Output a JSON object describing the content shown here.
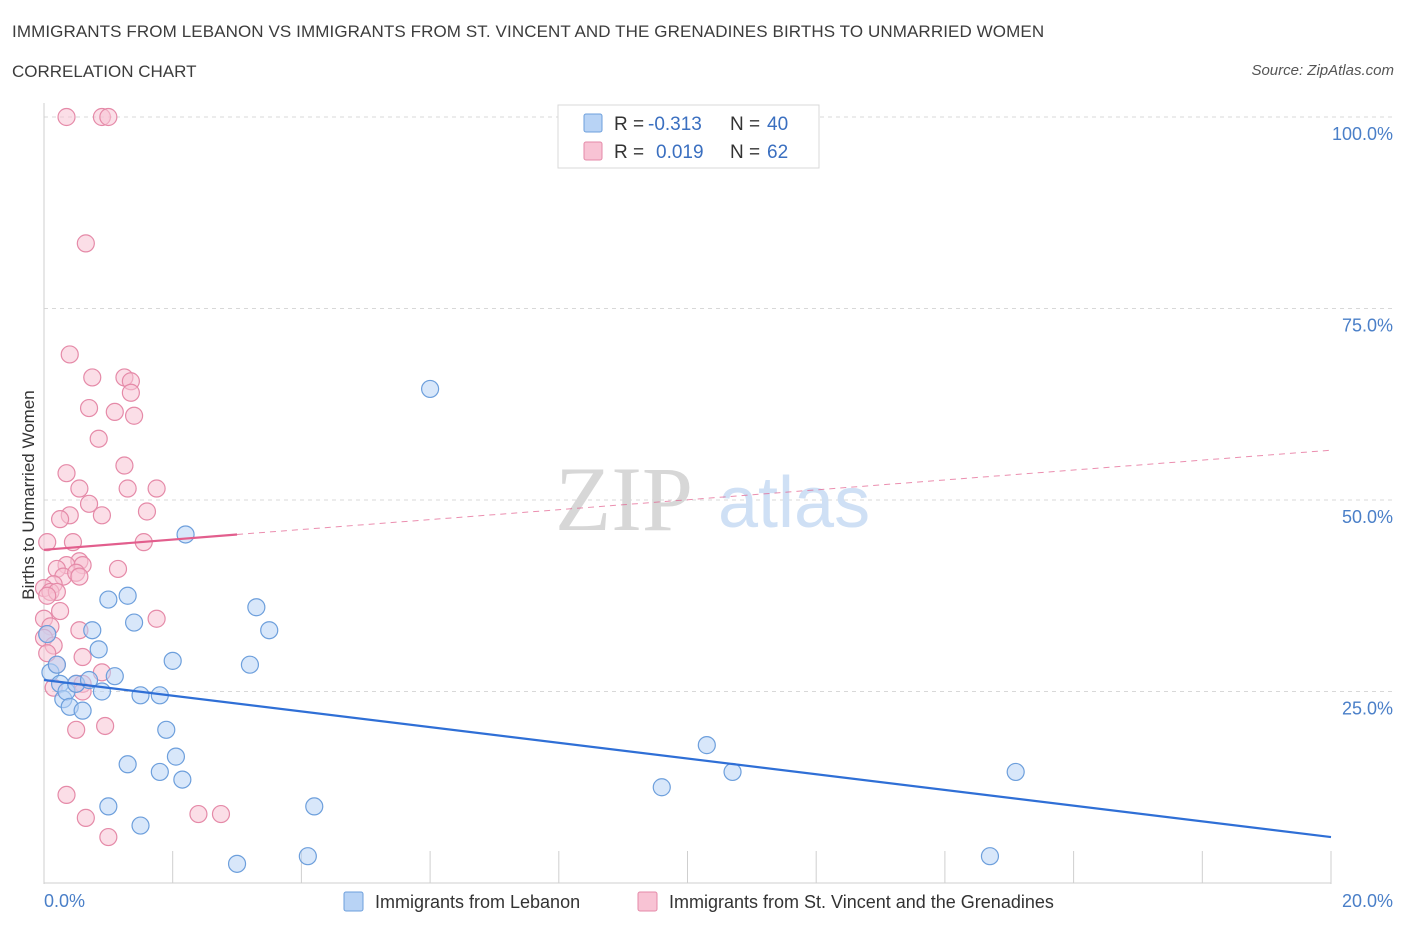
{
  "header": {
    "title": "IMMIGRANTS FROM LEBANON VS IMMIGRANTS FROM ST. VINCENT AND THE GRENADINES BIRTHS TO UNMARRIED WOMEN",
    "subtitle": "CORRELATION CHART",
    "source": "Source: ZipAtlas.com"
  },
  "watermark": {
    "zip": "ZIP",
    "atlas": "atlas"
  },
  "colors": {
    "blue_fill": "#b8d3f5",
    "blue_stroke": "#6d9fdc",
    "blue_line": "#2f6fd6",
    "pink_fill": "#f8c3d4",
    "pink_stroke": "#e58aa8",
    "pink_line": "#e25e8d",
    "grid": "#d8d8d8",
    "tick_text": "#4a7fc8"
  },
  "legend": {
    "r_label": "R =",
    "n_label": "N =",
    "entries": [
      {
        "r": "-0.313",
        "n": "40"
      },
      {
        "r": "0.019",
        "n": "62"
      }
    ]
  },
  "chart_data": {
    "type": "scatter",
    "xlabel": "",
    "ylabel": "Births to Unmarried Women",
    "xlim": [
      0,
      20
    ],
    "ylim": [
      0,
      100
    ],
    "x_tick_labels": [
      "0.0%",
      "20.0%"
    ],
    "y_tick_labels": [
      "100.0%",
      "75.0%",
      "50.0%",
      "25.0%"
    ],
    "y_ticks": [
      100,
      75,
      50,
      25
    ],
    "series": [
      {
        "name": "Immigrants from Lebanon",
        "points": [
          [
            0.1,
            27.5
          ],
          [
            0.2,
            28.5
          ],
          [
            0.25,
            26.0
          ],
          [
            0.3,
            24.0
          ],
          [
            0.35,
            25.0
          ],
          [
            0.4,
            23.0
          ],
          [
            0.5,
            26.0
          ],
          [
            0.6,
            22.5
          ],
          [
            0.7,
            26.5
          ],
          [
            0.75,
            33.0
          ],
          [
            0.85,
            30.5
          ],
          [
            0.9,
            25.0
          ],
          [
            1.0,
            37.0
          ],
          [
            1.1,
            27.0
          ],
          [
            1.3,
            37.5
          ],
          [
            1.4,
            34.0
          ],
          [
            1.5,
            24.5
          ],
          [
            1.8,
            24.5
          ],
          [
            1.9,
            20.0
          ],
          [
            2.0,
            29.0
          ],
          [
            2.05,
            16.5
          ],
          [
            2.2,
            45.5
          ],
          [
            3.2,
            28.5
          ],
          [
            3.3,
            36.0
          ],
          [
            3.5,
            33.0
          ],
          [
            1.3,
            15.5
          ],
          [
            1.8,
            14.5
          ],
          [
            2.15,
            13.5
          ],
          [
            1.0,
            10.0
          ],
          [
            4.2,
            10.0
          ],
          [
            1.5,
            7.5
          ],
          [
            3.0,
            2.5
          ],
          [
            4.1,
            3.5
          ],
          [
            6.0,
            64.5
          ],
          [
            10.3,
            18.0
          ],
          [
            9.6,
            12.5
          ],
          [
            10.7,
            14.5
          ],
          [
            15.1,
            14.5
          ],
          [
            14.7,
            3.5
          ],
          [
            0.05,
            32.5
          ]
        ]
      },
      {
        "name": "Immigrants from St. Vincent and the Grenadines",
        "points": [
          [
            0.35,
            100
          ],
          [
            0.9,
            100
          ],
          [
            1.0,
            100
          ],
          [
            0.65,
            83.5
          ],
          [
            0.4,
            69.0
          ],
          [
            0.75,
            66.0
          ],
          [
            1.25,
            66.0
          ],
          [
            1.35,
            65.5
          ],
          [
            1.35,
            64.0
          ],
          [
            0.7,
            62.0
          ],
          [
            1.1,
            61.5
          ],
          [
            1.4,
            61.0
          ],
          [
            0.85,
            58.0
          ],
          [
            1.25,
            54.5
          ],
          [
            0.35,
            53.5
          ],
          [
            0.55,
            51.5
          ],
          [
            1.3,
            51.5
          ],
          [
            1.75,
            51.5
          ],
          [
            0.7,
            49.5
          ],
          [
            0.4,
            48.0
          ],
          [
            0.9,
            48.0
          ],
          [
            1.6,
            48.5
          ],
          [
            0.25,
            47.5
          ],
          [
            0.05,
            44.5
          ],
          [
            0.45,
            44.5
          ],
          [
            1.55,
            44.5
          ],
          [
            0.55,
            42.0
          ],
          [
            0.35,
            41.5
          ],
          [
            0.2,
            41.0
          ],
          [
            0.6,
            41.5
          ],
          [
            0.3,
            40.0
          ],
          [
            0.5,
            40.5
          ],
          [
            0.55,
            40.0
          ],
          [
            1.15,
            41.0
          ],
          [
            0.15,
            39.0
          ],
          [
            0.0,
            38.5
          ],
          [
            0.1,
            38.0
          ],
          [
            0.2,
            38.0
          ],
          [
            0.05,
            37.5
          ],
          [
            0.25,
            35.5
          ],
          [
            0.0,
            34.5
          ],
          [
            0.1,
            33.5
          ],
          [
            0.05,
            32.5
          ],
          [
            0.55,
            33.0
          ],
          [
            0.0,
            32.0
          ],
          [
            0.15,
            31.0
          ],
          [
            0.6,
            29.5
          ],
          [
            1.75,
            34.5
          ],
          [
            0.2,
            28.5
          ],
          [
            0.5,
            26.0
          ],
          [
            0.6,
            26.0
          ],
          [
            0.15,
            25.5
          ],
          [
            0.6,
            25.0
          ],
          [
            0.9,
            27.5
          ],
          [
            0.5,
            20.0
          ],
          [
            0.95,
            20.5
          ],
          [
            0.35,
            11.5
          ],
          [
            0.65,
            8.5
          ],
          [
            2.4,
            9.0
          ],
          [
            2.75,
            9.0
          ],
          [
            1.0,
            6.0
          ],
          [
            0.05,
            30.0
          ]
        ]
      }
    ],
    "trendlines": [
      {
        "series": "Immigrants from Lebanon",
        "x": [
          0,
          20
        ],
        "y": [
          26.5,
          6.0
        ],
        "style": "solid"
      },
      {
        "series": "Immigrants from St. Vincent and the Grenadines",
        "x": [
          0,
          3.0
        ],
        "y": [
          43.5,
          45.5
        ],
        "style": "solid"
      },
      {
        "series": "Immigrants from St. Vincent and the Grenadines",
        "x": [
          3.0,
          20
        ],
        "y": [
          45.5,
          56.5
        ],
        "style": "dashed"
      }
    ],
    "grid": true,
    "legend_position": "top-center"
  },
  "bottom_legend": [
    {
      "label": "Immigrants from Lebanon"
    },
    {
      "label": "Immigrants from St. Vincent and the Grenadines"
    }
  ]
}
